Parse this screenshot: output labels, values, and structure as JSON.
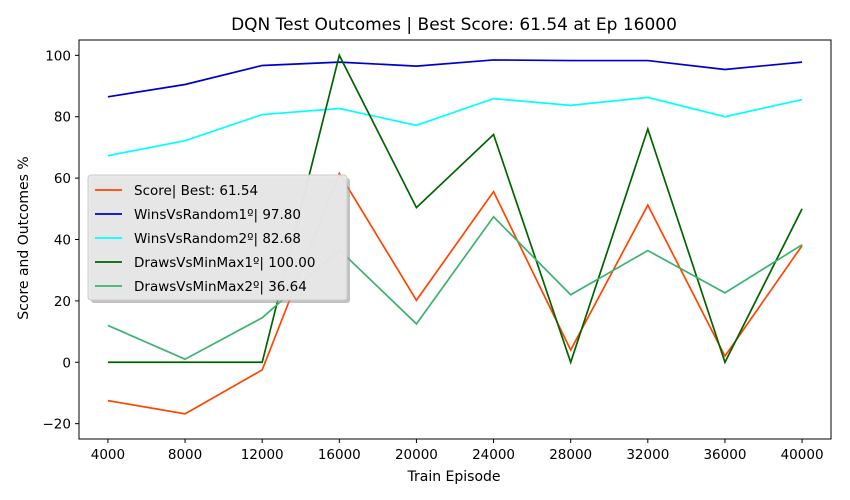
{
  "chart_data": {
    "type": "line",
    "title": "DQN Test Outcomes | Best Score: 61.54 at Ep 16000",
    "xlabel": "Train Episode",
    "ylabel": "Score and Outcomes %",
    "xlim": [
      2500,
      41500
    ],
    "ylim": [
      -25,
      105
    ],
    "x": [
      4000,
      8000,
      12000,
      16000,
      20000,
      24000,
      28000,
      32000,
      36000,
      40000
    ],
    "x_ticks": [
      "4000",
      "8000",
      "12000",
      "16000",
      "20000",
      "24000",
      "28000",
      "32000",
      "36000",
      "40000"
    ],
    "y_ticks": [
      -20,
      0,
      20,
      40,
      60,
      80,
      100
    ],
    "y_tick_labels": [
      "−20",
      "0",
      "20",
      "40",
      "60",
      "80",
      "100"
    ],
    "grid": false,
    "legend_position": "center-left",
    "series": [
      {
        "name": "Score| Best: 61.54",
        "color": "#ff4500",
        "values": [
          -12.5,
          -16.8,
          -2.5,
          61.54,
          20.2,
          55.6,
          4.0,
          51.2,
          2.0,
          38.0
        ]
      },
      {
        "name": "WinsVsRandom1º| 97.80",
        "color": "#0000cd",
        "values": [
          86.5,
          90.5,
          96.7,
          97.8,
          96.5,
          98.5,
          98.3,
          98.3,
          95.4,
          97.8
        ]
      },
      {
        "name": "WinsVsRandom2º| 82.68",
        "color": "#00ffff",
        "values": [
          67.3,
          72.2,
          80.7,
          82.68,
          77.2,
          85.9,
          83.7,
          86.3,
          80.0,
          85.6
        ]
      },
      {
        "name": "DrawsVsMinMax1º| 100.00",
        "color": "#006400",
        "values": [
          0.0,
          0.0,
          0.0,
          100.0,
          50.4,
          74.2,
          0.0,
          76.0,
          0.0,
          50.0
        ]
      },
      {
        "name": "DrawsVsMinMax2º| 36.64",
        "color": "#3cb371",
        "values": [
          12.0,
          1.0,
          14.5,
          36.64,
          12.5,
          47.4,
          22.0,
          36.4,
          22.6,
          38.3
        ]
      }
    ]
  }
}
